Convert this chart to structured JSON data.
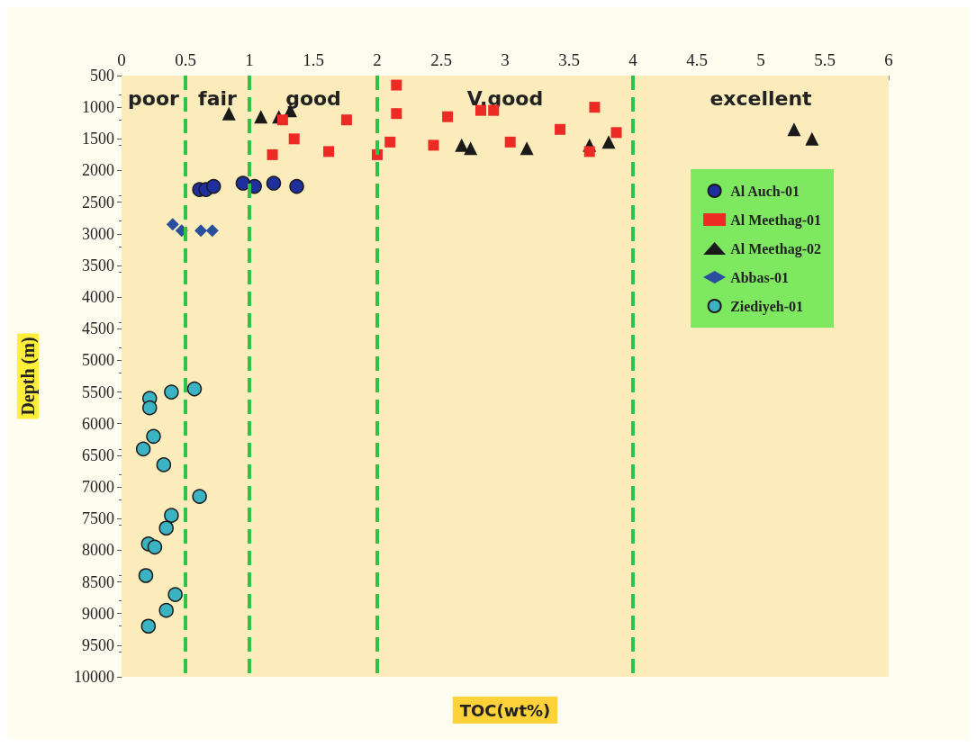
{
  "chart_data": {
    "type": "scatter",
    "xlabel": "TOC(wt%)",
    "ylabel": "Depth (m)",
    "xlim": [
      0,
      6
    ],
    "xticks": [
      0,
      0.5,
      1,
      1.5,
      2,
      2.5,
      3,
      3.5,
      4,
      4.5,
      5,
      5.5,
      6
    ],
    "ylim": [
      10000,
      500
    ],
    "yticks": [
      500,
      1000,
      1500,
      2000,
      2500,
      3000,
      3500,
      4000,
      4500,
      5000,
      5500,
      6000,
      6500,
      7000,
      7500,
      8000,
      8500,
      9000,
      9500,
      10000
    ],
    "grid": false,
    "legend": "right",
    "series": [
      {
        "name": "Al Auch-01",
        "color": "#1f2f9e",
        "marker": "circle",
        "x": [
          0.61,
          0.66,
          0.72,
          0.95,
          1.04,
          1.19,
          1.37
        ],
        "values": [
          2300,
          2300,
          2250,
          2200,
          2250,
          2200,
          2250
        ]
      },
      {
        "name": "Al Meethag-01",
        "color": "#ee2a24",
        "marker": "square",
        "x": [
          1.26,
          1.76,
          1.35,
          1.18,
          1.62,
          2.0,
          2.15,
          2.15,
          2.1,
          2.44,
          2.55,
          2.81,
          2.91,
          3.04,
          3.43,
          3.7,
          3.87,
          3.66
        ],
        "values": [
          1200,
          1200,
          1500,
          1750,
          1700,
          1750,
          650,
          1100,
          1550,
          1600,
          1150,
          1050,
          1050,
          1550,
          1350,
          1000,
          1400,
          1700
        ]
      },
      {
        "name": "Al Meethag-02",
        "color": "#1a1a1a",
        "marker": "triangle",
        "x": [
          0.84,
          1.09,
          1.23,
          1.32,
          2.66,
          2.73,
          3.17,
          3.66,
          3.81,
          5.26,
          5.4
        ],
        "values": [
          1100,
          1150,
          1150,
          1050,
          1600,
          1650,
          1650,
          1600,
          1550,
          1350,
          1500
        ]
      },
      {
        "name": "Abbas-01",
        "color": "#2a4f9e",
        "marker": "diamond",
        "x": [
          0.4,
          0.47,
          0.62,
          0.71
        ],
        "values": [
          2850,
          2950,
          2950,
          2950
        ]
      },
      {
        "name": "Ziediyeh-01",
        "color": "#3bb3c3",
        "marker": "circle",
        "x": [
          0.22,
          0.22,
          0.39,
          0.57,
          0.25,
          0.17,
          0.33,
          0.61,
          0.39,
          0.35,
          0.21,
          0.26,
          0.19,
          0.42,
          0.35,
          0.21
        ],
        "values": [
          5600,
          5750,
          5500,
          5450,
          6200,
          6400,
          6650,
          7150,
          7450,
          7650,
          7900,
          7950,
          8400,
          8700,
          8950,
          9200
        ]
      }
    ],
    "ref_lines": [
      {
        "axis": "x",
        "value": 0.5,
        "color": "#2fc24a",
        "line_style": "dashed"
      },
      {
        "axis": "x",
        "value": 1,
        "color": "#2fc24a",
        "line_style": "dashed"
      },
      {
        "axis": "x",
        "value": 2,
        "color": "#2fc24a",
        "line_style": "dashed"
      },
      {
        "axis": "x",
        "value": 4,
        "color": "#2fc24a",
        "line_style": "dashed"
      }
    ],
    "bands": [
      {
        "axis": "x",
        "from": 0,
        "to": 0.5,
        "label": "poor",
        "color": "#fcecbc"
      },
      {
        "axis": "x",
        "from": 0.5,
        "to": 1,
        "label": "fair",
        "color": "#fcecbc"
      },
      {
        "axis": "x",
        "from": 1,
        "to": 2,
        "label": "good",
        "color": "#fcecbc"
      },
      {
        "axis": "x",
        "from": 2,
        "to": 4,
        "label": "V.good",
        "color": "#fcecbc"
      },
      {
        "axis": "x",
        "from": 4,
        "to": 6,
        "label": "excellent",
        "color": "#fcecbc"
      }
    ]
  }
}
